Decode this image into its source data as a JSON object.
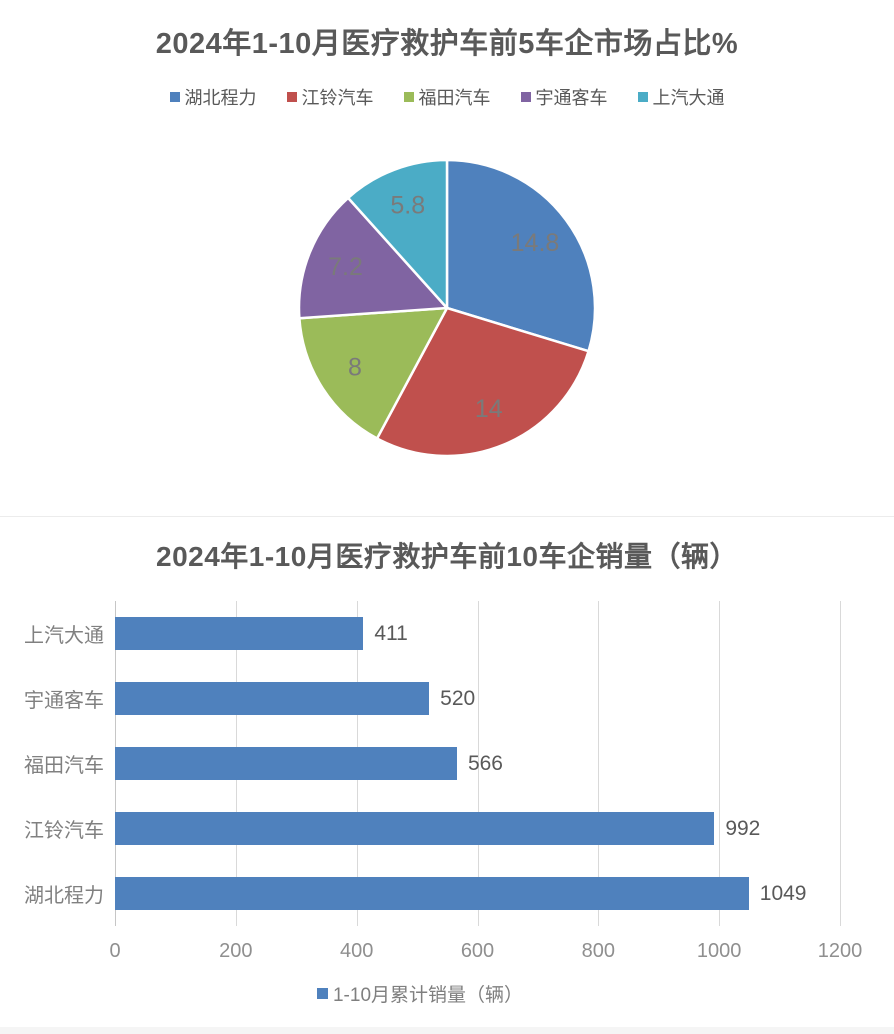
{
  "chart_data": [
    {
      "type": "pie",
      "title": "2024年1-10月医疗救护车前5车企市场占比%",
      "labels": [
        "湖北程力",
        "江铃汽车",
        "福田汽车",
        "宇通客车",
        "上汽大通"
      ],
      "values": [
        14.8,
        14,
        8,
        7.2,
        5.8
      ],
      "colors": [
        "#4F81BD",
        "#C0504D",
        "#9BBB59",
        "#8064A2",
        "#4BACC6"
      ],
      "start_angle_deg": 0,
      "direction": "clockwise",
      "legend_position": "top",
      "data_label_color": "#7a7a7a",
      "slice_border_color": "#ffffff"
    },
    {
      "type": "bar",
      "orientation": "horizontal",
      "title": "2024年1-10月医疗救护车前10车企销量（辆）",
      "categories": [
        "上汽大通",
        "宇通客车",
        "福田汽车",
        "江铃汽车",
        "湖北程力"
      ],
      "values": [
        411,
        520,
        566,
        992,
        1049
      ],
      "series_name": "1-10月累计销量（辆）",
      "bar_color": "#4F81BD",
      "xlim": [
        0,
        1200
      ],
      "x_ticks": [
        0,
        200,
        400,
        600,
        800,
        1000,
        1200
      ],
      "grid": true,
      "legend_position": "bottom"
    }
  ]
}
